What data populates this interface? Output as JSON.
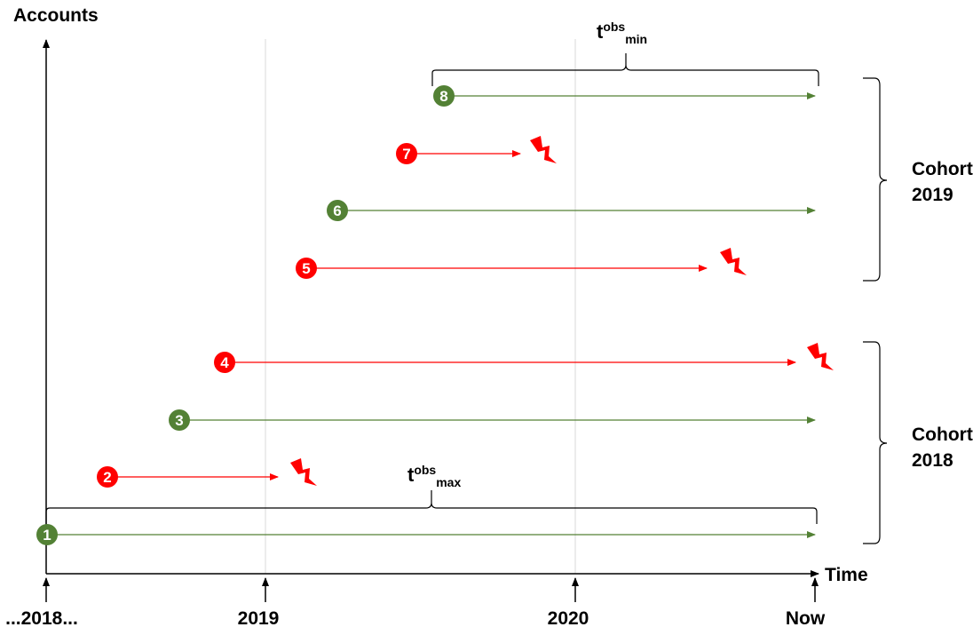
{
  "axes": {
    "y_label": "Accounts",
    "x_label": "Time"
  },
  "ticks": [
    "...2018...",
    "2019",
    "2020",
    "Now"
  ],
  "brackets": {
    "top": {
      "base": "t",
      "sup": "obs",
      "sub": "min"
    },
    "bottom": {
      "base": "t",
      "sup": "obs",
      "sub": "max"
    }
  },
  "cohorts": [
    {
      "line1": "Cohort",
      "line2": "2019"
    },
    {
      "line1": "Cohort",
      "line2": "2018"
    }
  ],
  "accounts": [
    {
      "id": "1",
      "status": "active"
    },
    {
      "id": "2",
      "status": "churned"
    },
    {
      "id": "3",
      "status": "active"
    },
    {
      "id": "4",
      "status": "churned"
    },
    {
      "id": "5",
      "status": "churned"
    },
    {
      "id": "6",
      "status": "active"
    },
    {
      "id": "7",
      "status": "churned"
    },
    {
      "id": "8",
      "status": "active"
    }
  ],
  "colors": {
    "active": "#538135",
    "churned": "#ff0000",
    "gridline": "#d9d9d9",
    "axis": "#000000"
  }
}
